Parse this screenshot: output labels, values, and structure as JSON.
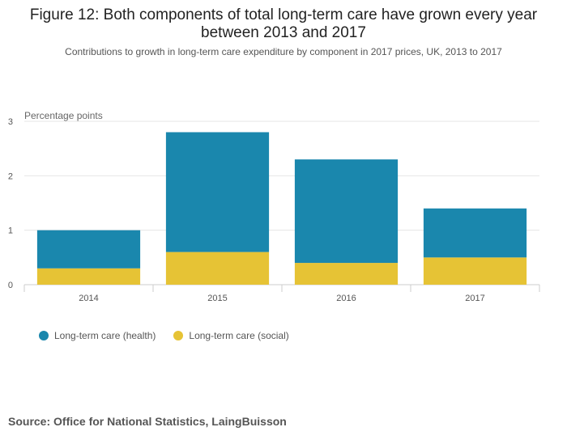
{
  "chart_data": {
    "type": "bar",
    "stacked": true,
    "title": "Figure 12: Both components of total long-term care have grown every year between 2013 and 2017",
    "subtitle": "Contributions to growth in long-term care expenditure by component in 2017 prices, UK, 2013 to 2017",
    "ylabel": "Percentage points",
    "categories": [
      "2014",
      "2015",
      "2016",
      "2017"
    ],
    "ylim": [
      0,
      3
    ],
    "yticks": [
      0,
      1,
      2,
      3
    ],
    "grid": true,
    "legend_position": "bottom-left",
    "series": [
      {
        "name": "Long-term care (social)",
        "color": "#e6c335",
        "values": [
          0.3,
          0.6,
          0.4,
          0.5
        ]
      },
      {
        "name": "Long-term care (health)",
        "color": "#1a87ad",
        "values": [
          0.7,
          2.2,
          1.9,
          0.9
        ]
      }
    ],
    "source": "Source: Office for National Statistics, LaingBuisson"
  }
}
